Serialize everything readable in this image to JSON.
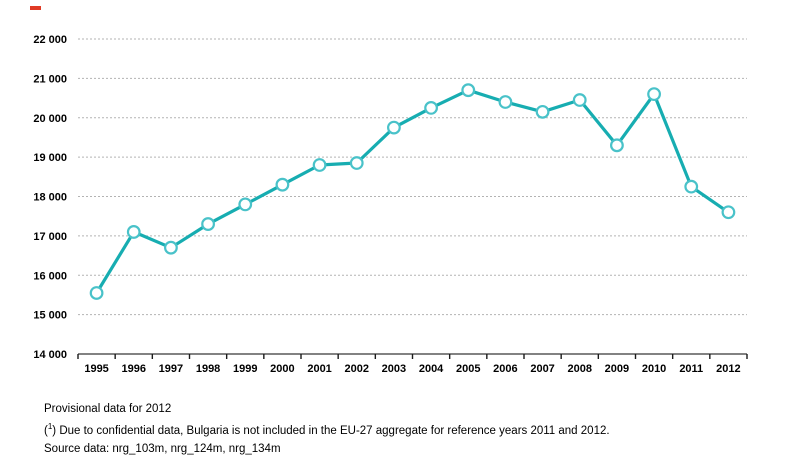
{
  "chart_data": {
    "type": "line",
    "title": "",
    "xlabel": "",
    "ylabel": "",
    "categories": [
      "1995",
      "1996",
      "1997",
      "1998",
      "1999",
      "2000",
      "2001",
      "2002",
      "2003",
      "2004",
      "2005",
      "2006",
      "2007",
      "2008",
      "2009",
      "2010",
      "2011",
      "2012"
    ],
    "values": [
      15550,
      17100,
      16700,
      17300,
      17800,
      18300,
      18800,
      18850,
      19750,
      20250,
      20700,
      20400,
      20150,
      20450,
      19300,
      20600,
      18250,
      17600
    ],
    "ylim": [
      14000,
      22000
    ],
    "ytick_step": 1000,
    "y_tick_labels": [
      "14 000",
      "15 000",
      "16 000",
      "17 000",
      "18 000",
      "19 000",
      "20 000",
      "21 000",
      "22 000"
    ],
    "grid": "horizontal dashed",
    "legend": "none",
    "colors": {
      "line": "#17adb1",
      "marker_stroke": "#49c2c9",
      "marker_fill": "#ffffff",
      "gridline": "#b3b3b3",
      "axis": "#595959",
      "tick": "#1a1a1a",
      "label_text": "#000000",
      "red_mark": "#e03a25"
    }
  },
  "notes": {
    "line1": "Provisional data for 2012",
    "line2_prefix": "(",
    "line2_sup": "1",
    "line2_rest": ") Due to confidential data, Bulgaria is not included in the EU-27 aggregate for reference years 2011 and 2012.",
    "line3": "Source data: nrg_103m, nrg_124m, nrg_134m"
  }
}
